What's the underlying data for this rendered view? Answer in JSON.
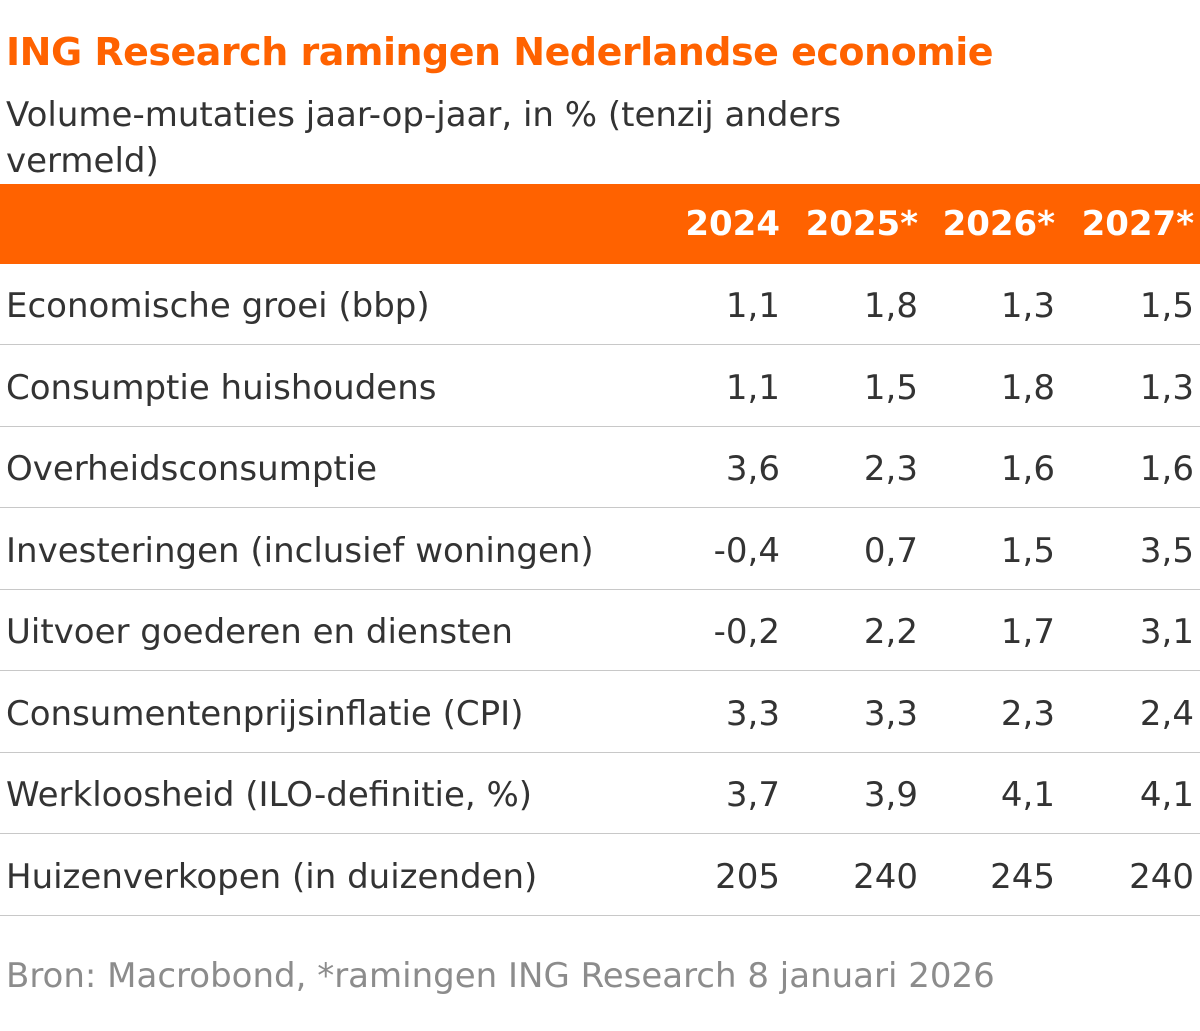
{
  "title": "ING Research ramingen Nederlandse economie",
  "subtitle": "Volume-mutaties jaar-op-jaar, in % (tenzij anders vermeld)",
  "columns": [
    "2024",
    "2025*",
    "2026*",
    "2027*"
  ],
  "rows": [
    {
      "label": "Economische groei (bbp)",
      "values": [
        "1,1",
        "1,8",
        "1,3",
        "1,5"
      ]
    },
    {
      "label": "Consumptie huishoudens",
      "values": [
        "1,1",
        "1,5",
        "1,8",
        "1,3"
      ]
    },
    {
      "label": "Overheidsconsumptie",
      "values": [
        "3,6",
        "2,3",
        "1,6",
        "1,6"
      ]
    },
    {
      "label": "Investeringen (inclusief woningen)",
      "values": [
        "-0,4",
        "0,7",
        "1,5",
        "3,5"
      ]
    },
    {
      "label": "Uitvoer goederen en diensten",
      "values": [
        "-0,2",
        "2,2",
        "1,7",
        "3,1"
      ]
    },
    {
      "label": "Consumentenprijsinflatie (CPI)",
      "values": [
        "3,3",
        "3,3",
        "2,3",
        "2,4"
      ]
    },
    {
      "label": "Werkloosheid (ILO-definitie, %)",
      "values": [
        "3,7",
        "3,9",
        "4,1",
        "4,1"
      ]
    },
    {
      "label": "Huizenverkopen (in duizenden)",
      "values": [
        "205",
        "240",
        "245",
        "240"
      ]
    }
  ],
  "source": "Bron: Macrobond, *ramingen ING Research 8 januari 2026",
  "colors": {
    "accent": "#ff6200",
    "text": "#333333",
    "source_text": "#8c8c8c",
    "divider": "#c8c8c8"
  }
}
